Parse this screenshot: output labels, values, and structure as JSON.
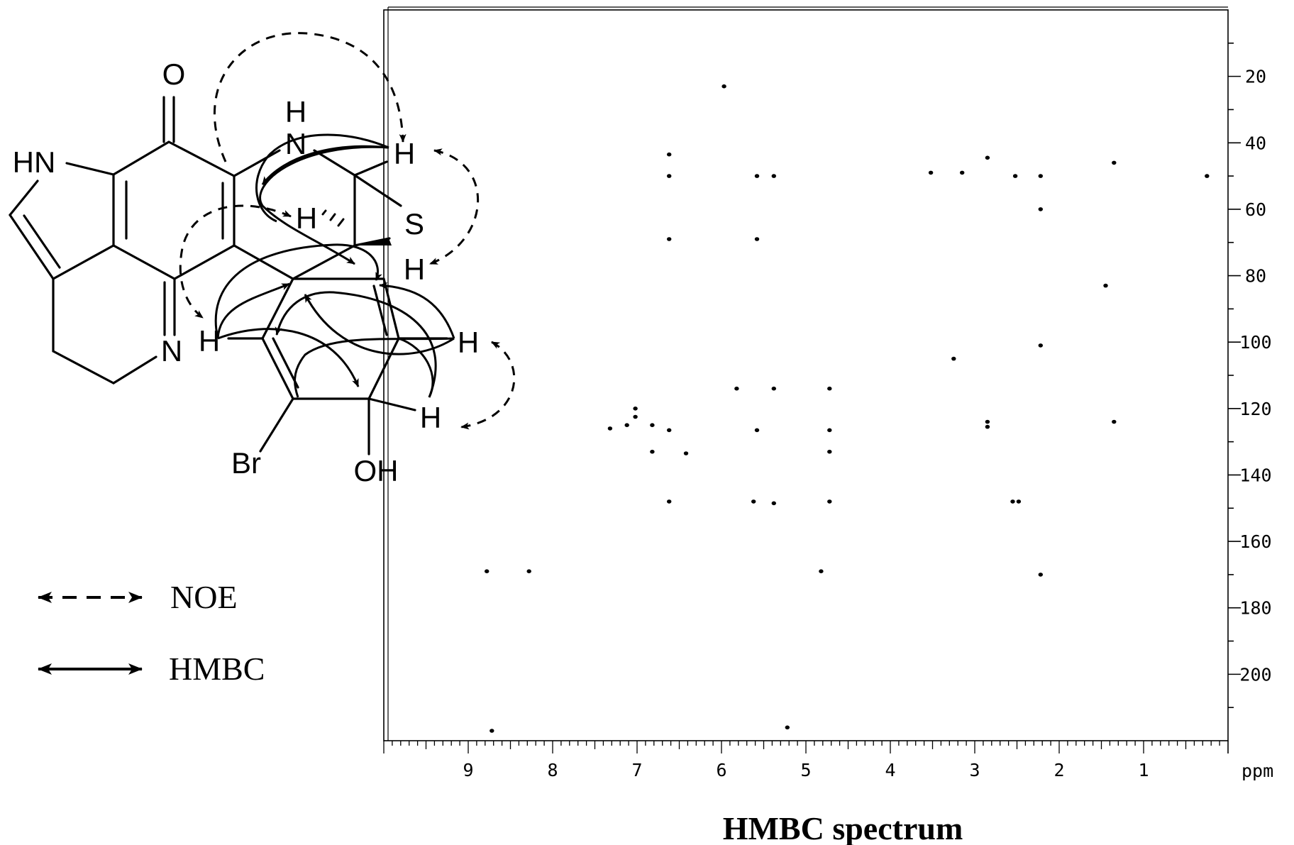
{
  "figure": {
    "title": "HMBC spectrum",
    "legend": [
      {
        "symbol": "dashed-double-arrow",
        "label": "NOE"
      },
      {
        "symbol": "solid-double-arrow",
        "label": "HMBC"
      }
    ],
    "molecule": {
      "atom_labels": [
        "O",
        "HN",
        "N",
        "H",
        "H",
        "H",
        "S",
        "H",
        "H",
        "H",
        "H",
        "N",
        "Br",
        "OH"
      ]
    }
  },
  "chart_data": {
    "type": "scatter",
    "title": "HMBC spectrum",
    "xlabel": "ppm",
    "ylabel": "",
    "xlim": [
      10.0,
      0.0
    ],
    "ylim": [
      0,
      220
    ],
    "x_ticks": [
      9,
      8,
      7,
      6,
      5,
      4,
      3,
      2,
      1
    ],
    "x_tick_labels": [
      "9",
      "8",
      "7",
      "6",
      "5",
      "4",
      "3",
      "2",
      "1"
    ],
    "y_ticks": [
      20,
      40,
      60,
      80,
      100,
      120,
      140,
      160,
      180,
      200
    ],
    "y_tick_labels": [
      "20",
      "40",
      "60",
      "80",
      "100",
      "120",
      "140",
      "160",
      "180",
      "200"
    ],
    "grid": false,
    "legend": "none",
    "series": [
      {
        "points": [
          [
            5.97,
            23
          ],
          [
            6.62,
            43.5
          ],
          [
            6.62,
            50
          ],
          [
            5.58,
            50
          ],
          [
            5.38,
            50
          ],
          [
            3.52,
            49
          ],
          [
            3.15,
            49
          ],
          [
            2.85,
            44.5
          ],
          [
            2.52,
            50
          ],
          [
            2.22,
            50
          ],
          [
            1.35,
            46
          ],
          [
            0.25,
            50
          ],
          [
            2.22,
            60
          ],
          [
            6.62,
            69
          ],
          [
            5.58,
            69
          ],
          [
            1.45,
            83
          ],
          [
            2.22,
            101
          ],
          [
            3.25,
            105
          ],
          [
            5.82,
            114
          ],
          [
            5.38,
            114
          ],
          [
            4.72,
            114
          ],
          [
            7.02,
            120
          ],
          [
            7.02,
            122.5
          ],
          [
            7.32,
            126
          ],
          [
            7.12,
            125
          ],
          [
            6.82,
            125
          ],
          [
            6.62,
            126.5
          ],
          [
            5.58,
            126.5
          ],
          [
            4.72,
            126.5
          ],
          [
            2.85,
            124
          ],
          [
            2.85,
            125.5
          ],
          [
            1.35,
            124
          ],
          [
            6.82,
            133
          ],
          [
            6.42,
            133.5
          ],
          [
            4.72,
            133
          ],
          [
            6.62,
            148
          ],
          [
            5.62,
            148
          ],
          [
            5.38,
            148.5
          ],
          [
            4.72,
            148
          ],
          [
            2.55,
            148
          ],
          [
            2.48,
            148
          ],
          [
            8.78,
            169
          ],
          [
            8.28,
            169
          ],
          [
            4.82,
            169
          ],
          [
            2.22,
            170
          ],
          [
            8.72,
            217
          ],
          [
            5.22,
            216
          ]
        ]
      }
    ]
  }
}
